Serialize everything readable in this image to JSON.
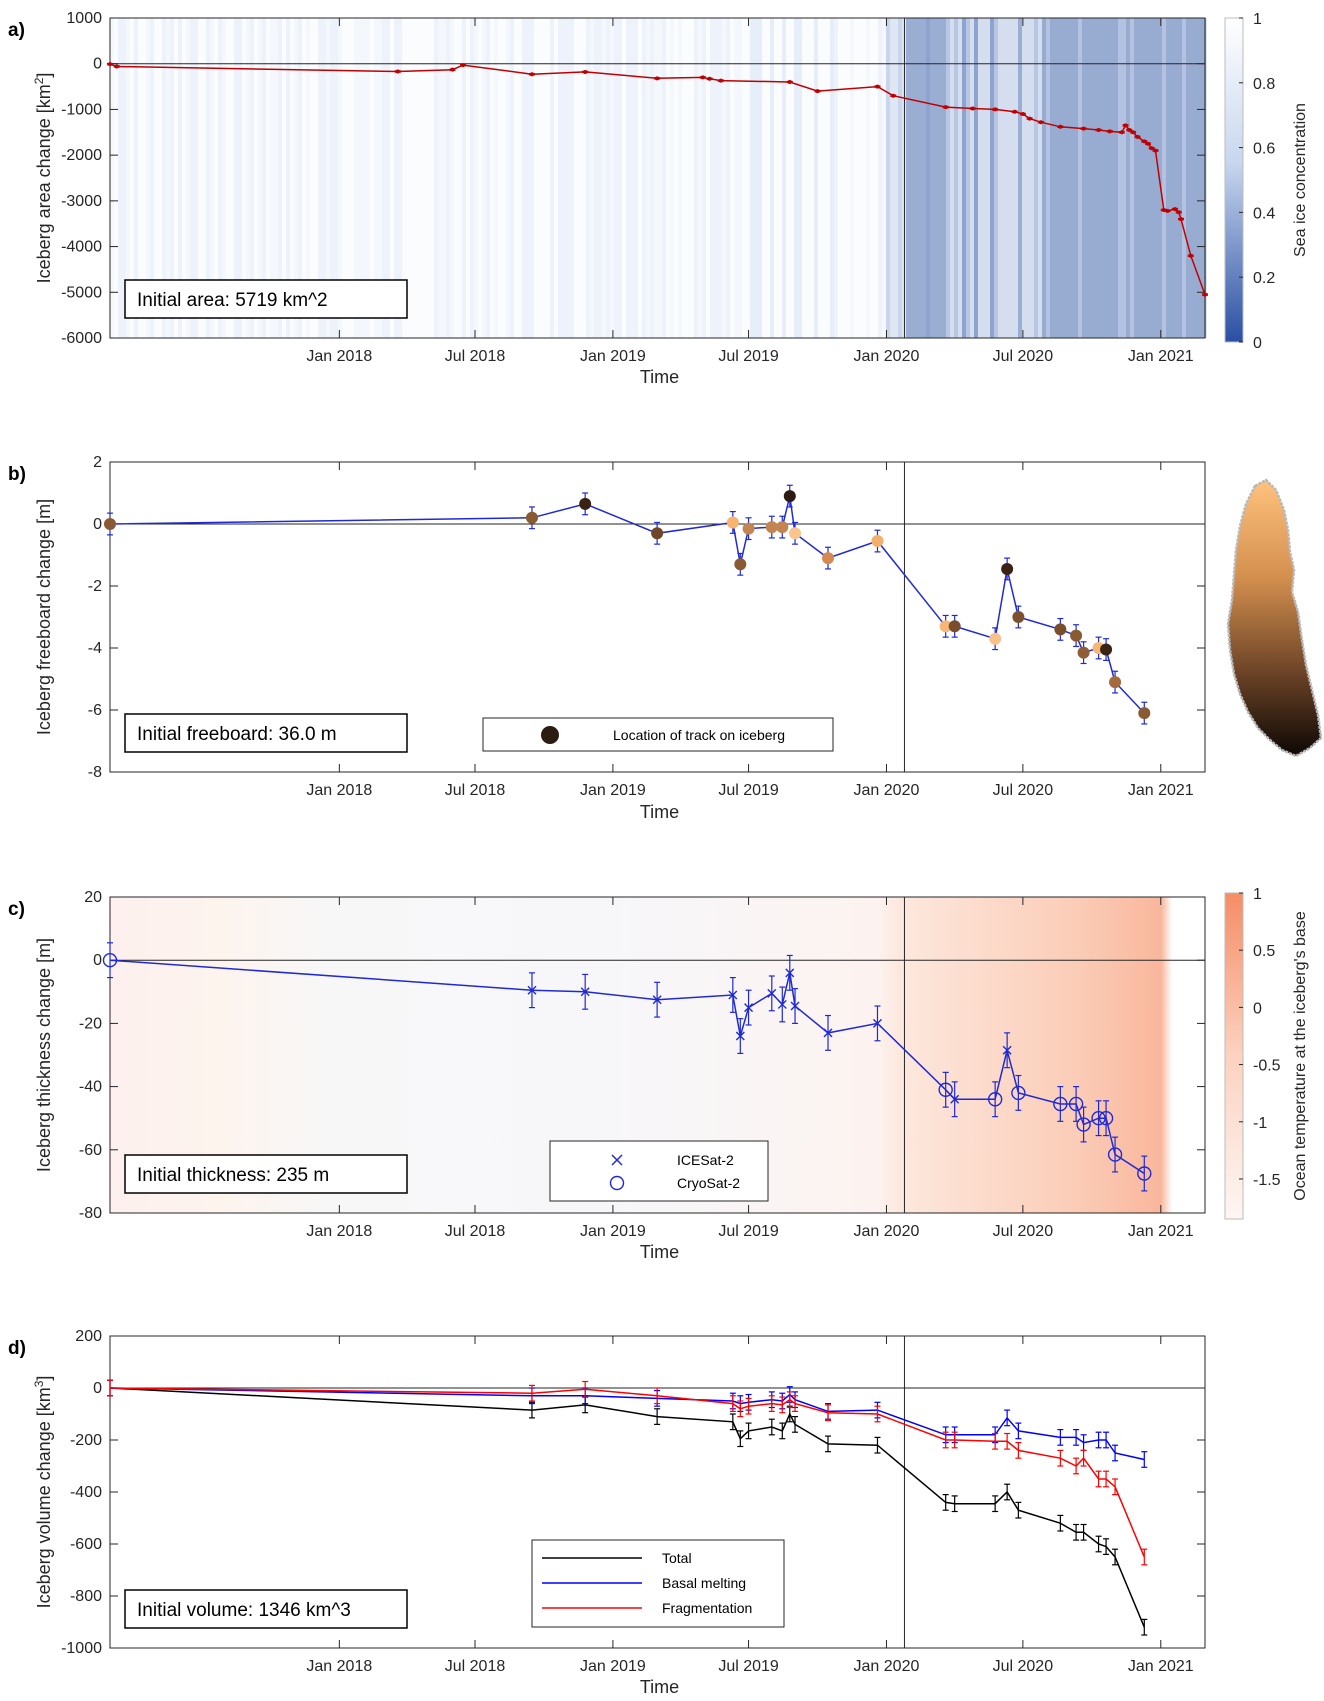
{
  "chart_data": [
    {
      "panel": "a)",
      "type": "line",
      "ylabel": "Iceberg area change [km",
      "ylabel_sup": "2",
      "ylabel_end": "]",
      "xlabel": "Time",
      "ylim": [
        -6000,
        1000
      ],
      "yticks": [
        1000,
        0,
        -1000,
        -2000,
        -3000,
        -4000,
        -5000,
        -6000
      ],
      "annotation": "Initial area: 5719 km^2",
      "colorbar": {
        "label": "Sea ice concentration",
        "ticks": [
          "1",
          "0.8",
          "0.6",
          "0.4",
          "0.2",
          "0"
        ]
      },
      "series": [
        {
          "color": "#c00000",
          "x": [
            "2017-03-01",
            "2017-03-10",
            "2018-03-20",
            "2018-06-01",
            "2018-06-15",
            "2018-09-15",
            "2018-11-25",
            "2019-03-01",
            "2019-05-01",
            "2019-05-10",
            "2019-05-25",
            "2019-08-25",
            "2019-10-01",
            "2019-12-20",
            "2020-01-10",
            "2020-03-20",
            "2020-04-25",
            "2020-05-25",
            "2020-06-20",
            "2020-07-01",
            "2020-07-10",
            "2020-07-25",
            "2020-08-20",
            "2020-09-20",
            "2020-10-10",
            "2020-10-25",
            "2020-11-10",
            "2020-11-15",
            "2020-11-20",
            "2020-11-25",
            "2020-12-01",
            "2020-12-10",
            "2020-12-15",
            "2020-12-20",
            "2020-12-25",
            "2021-01-05",
            "2021-01-10",
            "2021-01-20",
            "2021-01-25",
            "2021-01-28",
            "2021-02-10",
            "2021-03-01"
          ],
          "y": [
            -10,
            -60,
            -170,
            -130,
            -30,
            -230,
            -180,
            -320,
            -300,
            -330,
            -370,
            -400,
            -600,
            -500,
            -700,
            -950,
            -980,
            -1000,
            -1050,
            -1100,
            -1200,
            -1280,
            -1380,
            -1420,
            -1450,
            -1480,
            -1500,
            -1350,
            -1450,
            -1500,
            -1600,
            -1700,
            -1750,
            -1850,
            -1900,
            -3200,
            -3220,
            -3180,
            -3250,
            -3400,
            -4200,
            -5050
          ]
        }
      ]
    },
    {
      "panel": "b)",
      "type": "line",
      "ylabel": "Iceberg freeboard change [m]",
      "xlabel": "Time",
      "ylim": [
        -8,
        2
      ],
      "yticks": [
        2,
        0,
        -2,
        -4,
        -6,
        -8
      ],
      "annotation": "Initial freeboard: 36.0 m",
      "legend": [
        "Location of track on iceberg"
      ],
      "series": [
        {
          "color": "#1f2ad6",
          "x": [
            "2017-03-01",
            "2018-09-15",
            "2018-11-25",
            "2019-03-01",
            "2019-06-10",
            "2019-06-20",
            "2019-07-01",
            "2019-08-01",
            "2019-08-15",
            "2019-08-25",
            "2019-09-01",
            "2019-10-15",
            "2019-12-20",
            "2020-03-20",
            "2020-04-01",
            "2020-05-25",
            "2020-06-10",
            "2020-06-25",
            "2020-08-20",
            "2020-09-10",
            "2020-09-20",
            "2020-10-10",
            "2020-10-20",
            "2020-11-01",
            "2020-12-10"
          ],
          "y": [
            0.0,
            0.2,
            0.65,
            -0.3,
            0.05,
            -1.3,
            -0.15,
            -0.1,
            -0.1,
            0.9,
            -0.3,
            -1.1,
            -0.55,
            -3.3,
            -3.3,
            -3.7,
            -1.45,
            -3.0,
            -3.4,
            -3.6,
            -4.15,
            -4.0,
            -4.05,
            -5.1,
            -6.1
          ]
        }
      ]
    },
    {
      "panel": "c)",
      "type": "line",
      "ylabel": "Iceberg thickness change [m]",
      "xlabel": "Time",
      "ylim": [
        -80,
        20
      ],
      "yticks": [
        20,
        0,
        -20,
        -40,
        -60,
        -80
      ],
      "annotation": "Initial thickness: 235 m",
      "legend": [
        "ICESat-2",
        "CryoSat-2"
      ],
      "colorbar": {
        "label": "Ocean temperature at the iceberg's base",
        "ticks": [
          "1",
          "0.5",
          "0",
          "-0.5",
          "-1",
          "-1.5"
        ]
      },
      "series": [
        {
          "color": "#1f2ad6",
          "x": [
            "2017-03-01",
            "2018-09-15",
            "2018-11-25",
            "2019-03-01",
            "2019-06-10",
            "2019-06-20",
            "2019-07-01",
            "2019-08-01",
            "2019-08-15",
            "2019-08-25",
            "2019-09-01",
            "2019-10-15",
            "2019-12-20",
            "2020-03-20",
            "2020-04-01",
            "2020-05-25",
            "2020-06-10",
            "2020-06-25",
            "2020-08-20",
            "2020-09-10",
            "2020-09-20",
            "2020-10-10",
            "2020-10-20",
            "2020-11-01",
            "2020-12-10"
          ],
          "y": [
            0,
            -9.5,
            -10,
            -12.5,
            -11,
            -24,
            -15,
            -10.5,
            -14,
            -4,
            -14.5,
            -23,
            -20,
            -41,
            -44,
            -44,
            -28.5,
            -42,
            -45.5,
            -45.5,
            -52,
            -50,
            -50,
            -61.5,
            -67.5
          ]
        }
      ]
    },
    {
      "panel": "d)",
      "type": "line",
      "ylabel": "Iceberg volume change [km",
      "ylabel_sup": "3",
      "ylabel_end": "]",
      "xlabel": "Time",
      "ylim": [
        -1000,
        200
      ],
      "yticks": [
        200,
        0,
        -200,
        -400,
        -600,
        -800,
        -1000
      ],
      "annotation": "Initial volume: 1346 km^3",
      "legend": [
        "Total",
        "Basal melting",
        "Fragmentation"
      ],
      "series": [
        {
          "name": "Total",
          "color": "#000000",
          "x": [
            "2017-03-01",
            "2018-09-15",
            "2018-11-25",
            "2019-03-01",
            "2019-06-10",
            "2019-06-20",
            "2019-07-01",
            "2019-08-01",
            "2019-08-15",
            "2019-08-25",
            "2019-09-01",
            "2019-10-15",
            "2019-12-20",
            "2020-03-20",
            "2020-04-01",
            "2020-05-25",
            "2020-06-10",
            "2020-06-25",
            "2020-08-20",
            "2020-09-10",
            "2020-09-20",
            "2020-10-10",
            "2020-10-20",
            "2020-11-01",
            "2020-12-10"
          ],
          "y": [
            0,
            -85,
            -65,
            -110,
            -130,
            -195,
            -165,
            -150,
            -165,
            -100,
            -140,
            -215,
            -220,
            -440,
            -445,
            -445,
            -400,
            -470,
            -520,
            -555,
            -555,
            -600,
            -610,
            -650,
            -920
          ]
        },
        {
          "name": "Basal melting",
          "color": "#0000ff",
          "x": [
            "2017-03-01",
            "2018-09-15",
            "2018-11-25",
            "2019-03-01",
            "2019-06-10",
            "2019-06-20",
            "2019-07-01",
            "2019-08-01",
            "2019-08-15",
            "2019-08-25",
            "2019-09-01",
            "2019-10-15",
            "2019-12-20",
            "2020-03-20",
            "2020-04-01",
            "2020-05-25",
            "2020-06-10",
            "2020-06-25",
            "2020-08-20",
            "2020-09-10",
            "2020-09-20",
            "2020-10-10",
            "2020-10-20",
            "2020-11-01",
            "2020-12-10"
          ],
          "y": [
            0,
            -30,
            -30,
            -40,
            -50,
            -60,
            -55,
            -45,
            -50,
            -25,
            -45,
            -90,
            -85,
            -180,
            -180,
            -180,
            -115,
            -165,
            -190,
            -190,
            -210,
            -200,
            -200,
            -250,
            -275
          ]
        },
        {
          "name": "Fragmentation",
          "color": "#ff0000",
          "x": [
            "2017-03-01",
            "2018-09-15",
            "2018-11-25",
            "2019-03-01",
            "2019-06-10",
            "2019-06-20",
            "2019-07-01",
            "2019-08-01",
            "2019-08-15",
            "2019-08-25",
            "2019-09-01",
            "2019-10-15",
            "2019-12-20",
            "2020-03-20",
            "2020-04-01",
            "2020-05-25",
            "2020-06-10",
            "2020-06-25",
            "2020-08-20",
            "2020-09-10",
            "2020-09-20",
            "2020-10-10",
            "2020-10-20",
            "2020-11-01",
            "2020-12-10"
          ],
          "y": [
            0,
            -20,
            -5,
            -30,
            -60,
            -80,
            -70,
            -60,
            -65,
            -45,
            -60,
            -95,
            -100,
            -200,
            -200,
            -205,
            -205,
            -240,
            -270,
            -300,
            -270,
            -350,
            -350,
            -380,
            -650
          ]
        }
      ]
    }
  ],
  "xticks": [
    "Jan 2018",
    "Jul 2018",
    "Jan 2019",
    "Jul 2019",
    "Jan 2020",
    "Jul 2020",
    "Jan 2021"
  ]
}
